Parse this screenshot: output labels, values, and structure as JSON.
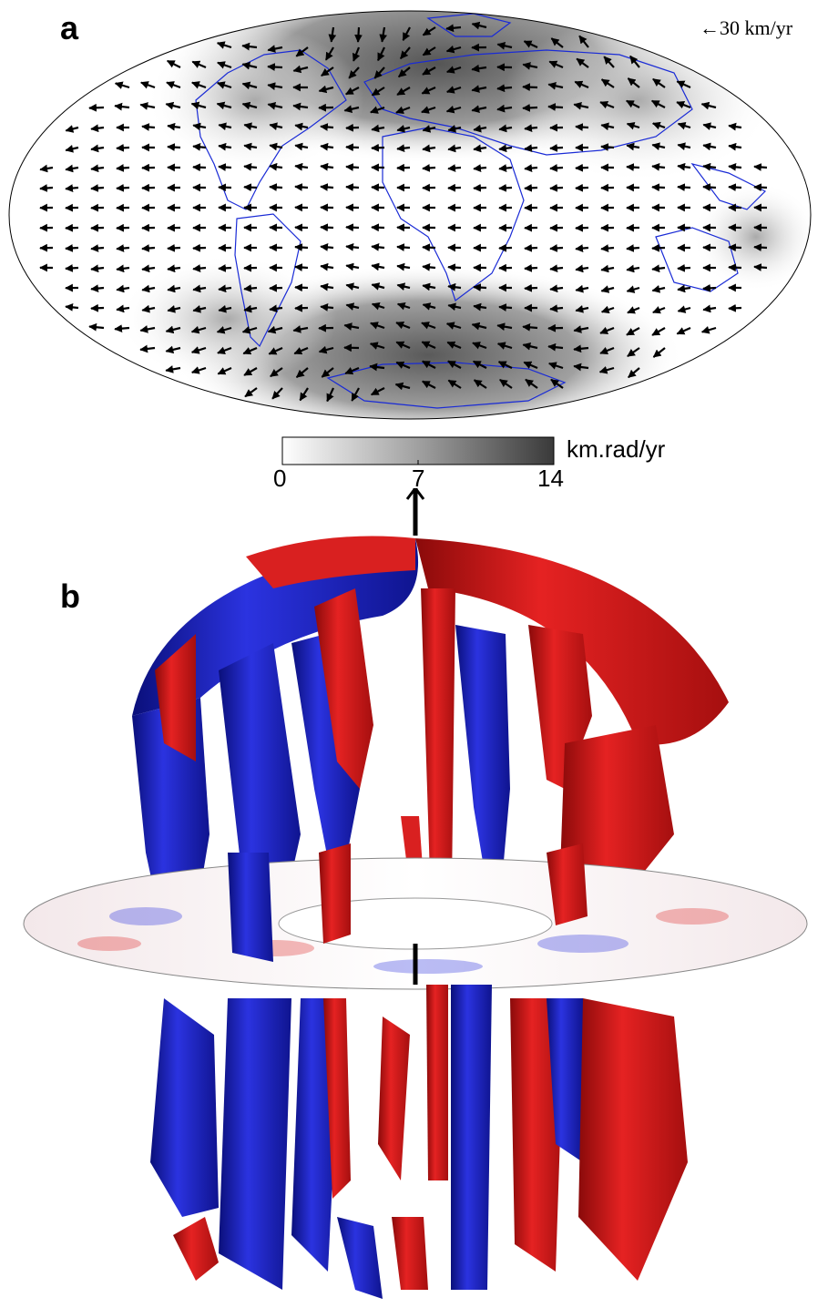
{
  "panel_a": {
    "label": "a",
    "scale_arrow": "←30 km/yr"
  },
  "colorbar": {
    "min": "0",
    "mid": "7",
    "max": "14",
    "unit": "km.rad/yr"
  },
  "panel_b": {
    "label": "b"
  },
  "colors": {
    "positive": "#d81515",
    "negative": "#1a1fcc",
    "coastline": "#1a2bd6",
    "arrows": "#000000"
  }
}
